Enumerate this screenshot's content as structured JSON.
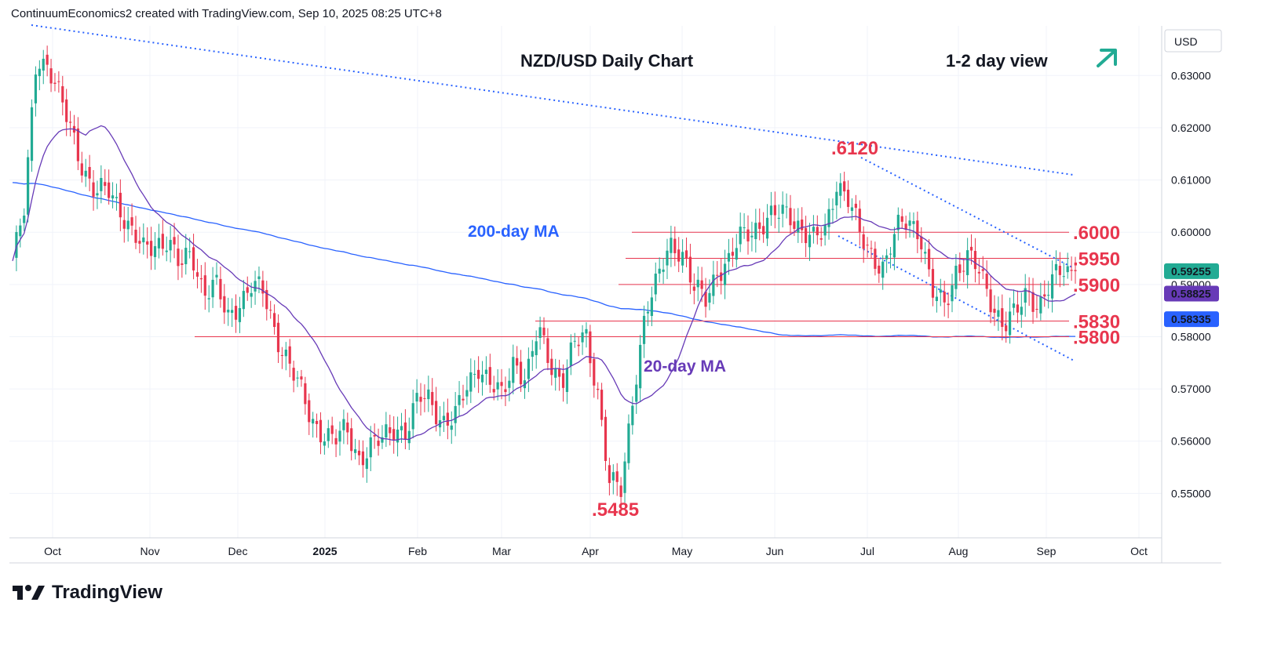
{
  "header": {
    "text": "ContinuumEconomics2 created with TradingView.com, Sep 10, 2025 08:25 UTC+8"
  },
  "footer": {
    "brand": "TradingView"
  },
  "colors": {
    "up": "#22ab94",
    "down": "#e8364e",
    "ma200": "#2962ff",
    "ma20": "#673ab7",
    "annotation": "#e8364e",
    "trend": "#2962ff",
    "arrow": "#22ab94"
  },
  "icons": {
    "logo": "tradingview-logo-icon",
    "arrow": "up-right-arrow-icon"
  },
  "chart_data": {
    "type": "candlestick",
    "title": "NZD/USD Daily Chart",
    "subtitle": "1-2 day view",
    "currency": "USD",
    "ylim": [
      0.5415,
      0.6395
    ],
    "yticks": [
      {
        "v": 0.63,
        "label": "0.63000"
      },
      {
        "v": 0.62,
        "label": "0.62000"
      },
      {
        "v": 0.61,
        "label": "0.61000"
      },
      {
        "v": 0.6,
        "label": "0.60000"
      },
      {
        "v": 0.59,
        "label": "0.59000"
      },
      {
        "v": 0.58,
        "label": "0.58000"
      },
      {
        "v": 0.57,
        "label": "0.57000"
      },
      {
        "v": 0.56,
        "label": "0.56000"
      },
      {
        "v": 0.55,
        "label": "0.55000"
      }
    ],
    "xticks": [
      "Oct",
      "Nov",
      "Dec",
      "2025",
      "Feb",
      "Mar",
      "Apr",
      "May",
      "Jun",
      "Jul",
      "Aug",
      "Sep",
      "Oct"
    ],
    "price_badges": [
      {
        "label": "0.59255",
        "v": 0.59255,
        "color": "#22ab94"
      },
      {
        "label": "0.58825",
        "v": 0.58825,
        "color": "#673ab7"
      },
      {
        "label": "0.58335",
        "v": 0.58335,
        "color": "#2962ff"
      }
    ],
    "levels": [
      {
        "label": ".6000",
        "v": 0.6
      },
      {
        "label": ".5950",
        "v": 0.595
      },
      {
        "label": ".5900",
        "v": 0.59
      },
      {
        "label": ".5830",
        "v": 0.583
      },
      {
        "label": ".5800",
        "v": 0.58
      }
    ],
    "annotations": [
      {
        "label": ".6120",
        "v": 0.612
      },
      {
        "label": ".5485",
        "v": 0.5485
      }
    ],
    "ma_labels": [
      "200-day MA",
      "20-day MA"
    ],
    "close_anchors": [
      0.5945,
      0.604,
      0.634,
      0.632,
      0.625,
      0.619,
      0.612,
      0.607,
      0.608,
      0.605,
      0.6,
      0.596,
      0.598,
      0.599,
      0.593,
      0.596,
      0.589,
      0.59,
      0.583,
      0.587,
      0.59,
      0.588,
      0.581,
      0.576,
      0.57,
      0.564,
      0.562,
      0.56,
      0.562,
      0.557,
      0.559,
      0.56,
      0.563,
      0.562,
      0.568,
      0.568,
      0.564,
      0.564,
      0.57,
      0.575,
      0.571,
      0.568,
      0.576,
      0.572,
      0.581,
      0.575,
      0.572,
      0.578,
      0.58,
      0.57,
      0.552,
      0.55,
      0.57,
      0.585,
      0.59,
      0.598,
      0.597,
      0.589,
      0.587,
      0.593,
      0.594,
      0.599,
      0.601,
      0.602,
      0.603,
      0.604,
      0.601,
      0.598,
      0.6,
      0.61,
      0.606,
      0.599,
      0.596,
      0.593,
      0.6,
      0.603,
      0.6,
      0.588,
      0.586,
      0.593,
      0.595,
      0.592,
      0.587,
      0.582,
      0.584,
      0.589,
      0.586,
      0.59,
      0.593,
      0.5926
    ]
  }
}
